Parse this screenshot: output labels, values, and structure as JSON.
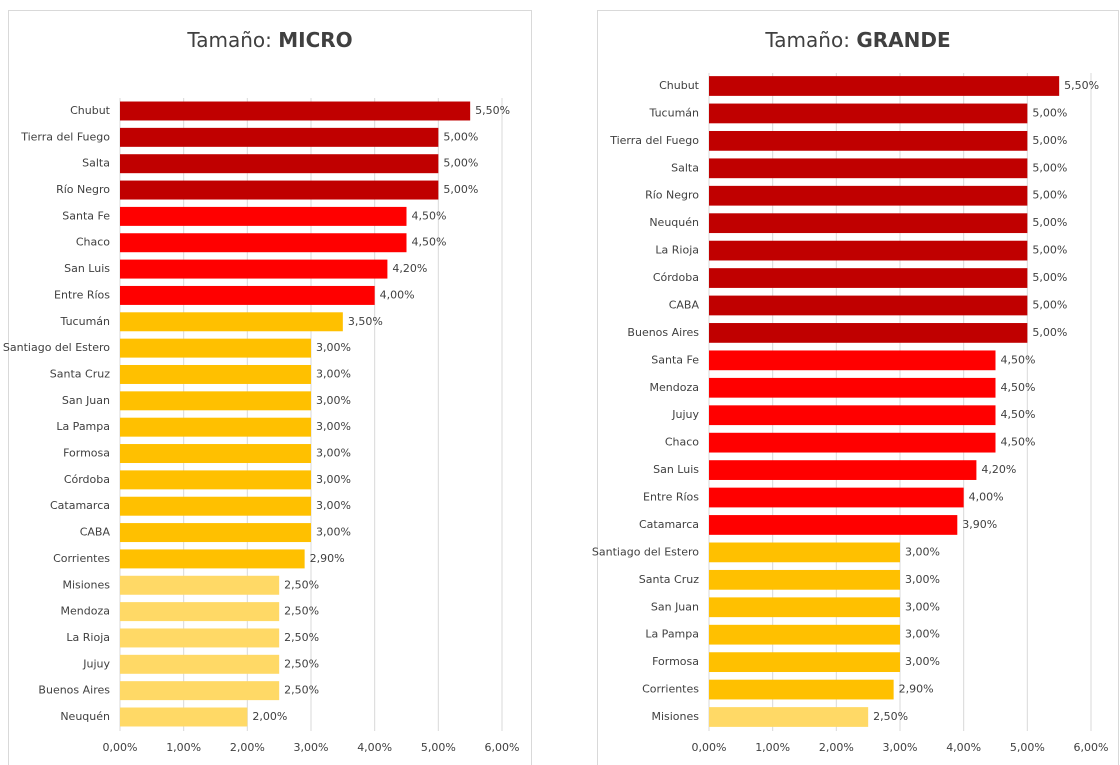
{
  "chart_data": [
    {
      "type": "bar",
      "orientation": "horizontal",
      "title": [
        "Tamaño:",
        "MICRO"
      ],
      "categories": [
        "Chubut",
        "Tierra del Fuego",
        "Salta",
        "Río Negro",
        "Santa Fe",
        "Chaco",
        "San Luis",
        "Entre Ríos",
        "Tucumán",
        "Santiago del Estero",
        "Santa Cruz",
        "San Juan",
        "La Pampa",
        "Formosa",
        "Córdoba",
        "Catamarca",
        "CABA",
        "Corrientes",
        "Misiones",
        "Mendoza",
        "La Rioja",
        "Jujuy",
        "Buenos Aires",
        "Neuquén"
      ],
      "values": [
        5.5,
        5,
        5,
        5,
        4.5,
        4.5,
        4.2,
        4,
        3.5,
        3,
        3,
        3,
        3,
        3,
        3,
        3,
        3,
        2.9,
        2.5,
        2.5,
        2.5,
        2.5,
        2.5,
        2
      ],
      "value_labels": [
        "5,50%",
        "5,00%",
        "5,00%",
        "5,00%",
        "4,50%",
        "4,50%",
        "4,20%",
        "4,00%",
        "3,50%",
        "3,00%",
        "3,00%",
        "3,00%",
        "3,00%",
        "3,00%",
        "3,00%",
        "3,00%",
        "3,00%",
        "2,90%",
        "2,50%",
        "2,50%",
        "2,50%",
        "2,50%",
        "2,50%",
        "2,00%"
      ],
      "colors": [
        "#c00000",
        "#c00000",
        "#c00000",
        "#c00000",
        "#ff0000",
        "#ff0000",
        "#ff0000",
        "#ff0000",
        "#ffc000",
        "#ffc000",
        "#ffc000",
        "#ffc000",
        "#ffc000",
        "#ffc000",
        "#ffc000",
        "#ffc000",
        "#ffc000",
        "#ffc000",
        "#ffd966",
        "#ffd966",
        "#ffd966",
        "#ffd966",
        "#ffd966",
        "#ffd966"
      ],
      "xlim": [
        0,
        6
      ],
      "xticks": [
        {
          "value": 0,
          "label": "0,00%"
        },
        {
          "value": 1,
          "label": "1,00%"
        },
        {
          "value": 2,
          "label": "2,00%"
        },
        {
          "value": 3,
          "label": "3,00%"
        },
        {
          "value": 4,
          "label": "4,00%"
        },
        {
          "value": 5,
          "label": "5,00%"
        },
        {
          "value": 6,
          "label": "6,00%"
        }
      ],
      "grid": true
    },
    {
      "type": "bar",
      "orientation": "horizontal",
      "title": [
        "Tamaño:",
        "GRANDE"
      ],
      "categories": [
        "Chubut",
        "Tucumán",
        "Tierra del Fuego",
        "Salta",
        "Río Negro",
        "Neuquén",
        "La Rioja",
        "Córdoba",
        "CABA",
        "Buenos Aires",
        "Santa Fe",
        "Mendoza",
        "Jujuy",
        "Chaco",
        "San Luis",
        "Entre Ríos",
        "Catamarca",
        "Santiago del Estero",
        "Santa Cruz",
        "San Juan",
        "La Pampa",
        "Formosa",
        "Corrientes",
        "Misiones"
      ],
      "values": [
        5.5,
        5,
        5,
        5,
        5,
        5,
        5,
        5,
        5,
        5,
        4.5,
        4.5,
        4.5,
        4.5,
        4.2,
        4,
        3.9,
        3,
        3,
        3,
        3,
        3,
        2.9,
        2.5
      ],
      "value_labels": [
        "5,50%",
        "5,00%",
        "5,00%",
        "5,00%",
        "5,00%",
        "5,00%",
        "5,00%",
        "5,00%",
        "5,00%",
        "5,00%",
        "4,50%",
        "4,50%",
        "4,50%",
        "4,50%",
        "4,20%",
        "4,00%",
        "3,90%",
        "3,00%",
        "3,00%",
        "3,00%",
        "3,00%",
        "3,00%",
        "2,90%",
        "2,50%"
      ],
      "colors": [
        "#c00000",
        "#c00000",
        "#c00000",
        "#c00000",
        "#c00000",
        "#c00000",
        "#c00000",
        "#c00000",
        "#c00000",
        "#c00000",
        "#ff0000",
        "#ff0000",
        "#ff0000",
        "#ff0000",
        "#ff0000",
        "#ff0000",
        "#ff0000",
        "#ffc000",
        "#ffc000",
        "#ffc000",
        "#ffc000",
        "#ffc000",
        "#ffc000",
        "#ffd966"
      ],
      "xlim": [
        0,
        6
      ],
      "xticks": [
        {
          "value": 0,
          "label": "0,00%"
        },
        {
          "value": 1,
          "label": "1,00%"
        },
        {
          "value": 2,
          "label": "2,00%"
        },
        {
          "value": 3,
          "label": "3,00%"
        },
        {
          "value": 4,
          "label": "4,00%"
        },
        {
          "value": 5,
          "label": "5,00%"
        },
        {
          "value": 6,
          "label": "6,00%"
        }
      ],
      "grid": true
    }
  ]
}
